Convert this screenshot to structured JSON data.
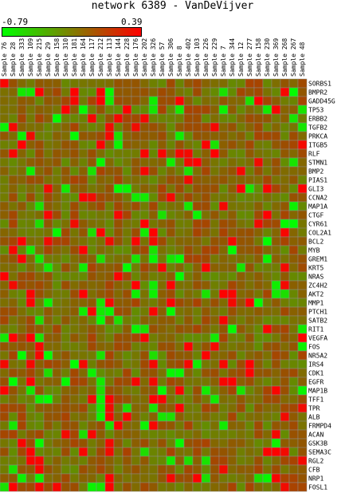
{
  "chart_data": {
    "type": "heatmap",
    "title": "network 6389 - VanDeVijver",
    "color_scale": {
      "min": -0.79,
      "max": 0.39,
      "min_color": "#00ff00",
      "mid_color": "#7f7f00",
      "max_color": "#ff0000"
    },
    "columns": [
      "Sample 76",
      "Sample 28",
      "Sample 333",
      "Sample 109",
      "Sample 215",
      "Sample 29",
      "Sample 158",
      "Sample 310",
      "Sample 181",
      "Sample 164",
      "Sample 117",
      "Sample 212",
      "Sample 113",
      "Sample 144",
      "Sample 228",
      "Sample 176",
      "Sample 202",
      "Sample 326",
      "Sample 57",
      "Sample 306",
      "Sample 8",
      "Sample 402",
      "Sample 103",
      "Sample 226",
      "Sample 229",
      "Sample 7",
      "Sample 344",
      "Sample 12",
      "Sample 277",
      "Sample 158",
      "Sample 230",
      "Sample 369",
      "Sample 268",
      "Sample 267",
      "Sample 48"
    ],
    "rows": [
      "SORBS1",
      "BMPR2",
      "GADD45G",
      "TP53",
      "ERBB2",
      "TGFB2",
      "PRKCA",
      "ITGB5",
      "RLF",
      "STMN1",
      "BMP2",
      "PIAS1",
      "GLI3",
      "CCNA2",
      "MAP1A",
      "CTGF",
      "CYR61",
      "COL2A1",
      "BCL2",
      "MYB",
      "GREM1",
      "KRT5",
      "NRAS",
      "ZC4H2",
      "AKT2",
      "MMP1",
      "PTCH1",
      "SATB2",
      "RIT1",
      "VEGFA",
      "FOS",
      "NR5A2",
      "IRS4",
      "CDK1",
      "EGFR",
      "MAP1B",
      "TFF1",
      "TPR",
      "ALB",
      "FRMPD4",
      "ACAN",
      "GSK3B",
      "SEMA3C",
      "RGL2",
      "CFB",
      "NRP1",
      "FOSL1"
    ]
  }
}
